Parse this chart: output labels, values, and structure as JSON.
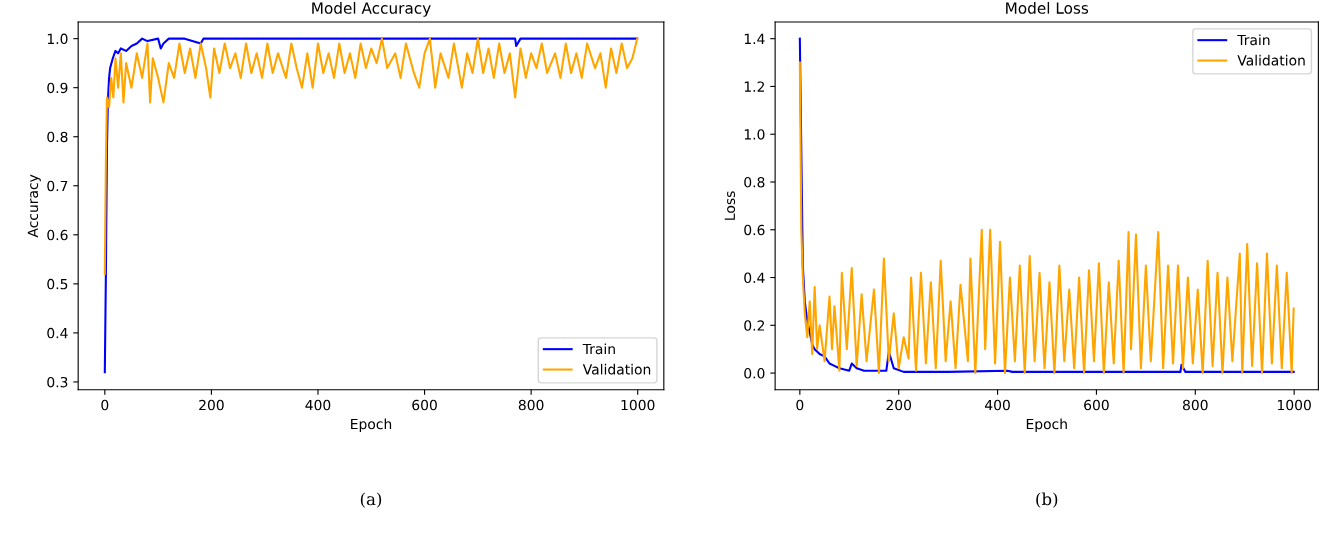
{
  "chart_data": [
    {
      "type": "line",
      "title": "Model Accuracy",
      "xlabel": "Epoch",
      "ylabel": "Accuracy",
      "xlim": [
        -50,
        1049
      ],
      "xticks": [
        0,
        200,
        400,
        600,
        800,
        1000
      ],
      "ylim": [
        0.284,
        1.034
      ],
      "yticks": [
        {
          "value": 0.3,
          "label": "0.3"
        },
        {
          "value": 0.4,
          "label": "0.4"
        },
        {
          "value": 0.5,
          "label": "0.5"
        },
        {
          "value": 0.6,
          "label": "0.6"
        },
        {
          "value": 0.7,
          "label": "0.7"
        },
        {
          "value": 0.8,
          "label": "0.8"
        },
        {
          "value": 0.9,
          "label": "0.9"
        },
        {
          "value": 1.0,
          "label": "1.0"
        }
      ],
      "legend": "lower right",
      "grid": false,
      "annotations": [
        "(a)"
      ],
      "series": [
        {
          "name": "Train",
          "color": "#0000ff",
          "x": [
            0,
            2,
            4,
            6,
            8,
            10,
            15,
            20,
            25,
            30,
            40,
            50,
            60,
            70,
            80,
            100,
            105,
            110,
            120,
            150,
            180,
            185,
            200,
            400,
            770,
            772,
            780,
            999
          ],
          "values": [
            0.32,
            0.52,
            0.78,
            0.88,
            0.92,
            0.94,
            0.96,
            0.975,
            0.97,
            0.98,
            0.975,
            0.985,
            0.99,
            1.0,
            0.995,
            1.0,
            0.98,
            0.99,
            1.0,
            1.0,
            0.99,
            1.0,
            1.0,
            1.0,
            1.0,
            0.985,
            1.0,
            1.0
          ]
        },
        {
          "name": "Validation",
          "color": "#ffa500",
          "x": [
            0,
            2,
            4,
            8,
            12,
            16,
            20,
            25,
            30,
            35,
            40,
            50,
            60,
            70,
            80,
            85,
            90,
            100,
            110,
            120,
            130,
            140,
            150,
            160,
            170,
            180,
            190,
            198,
            205,
            215,
            225,
            235,
            245,
            255,
            265,
            275,
            285,
            295,
            305,
            315,
            325,
            340,
            350,
            360,
            370,
            380,
            390,
            400,
            410,
            420,
            430,
            440,
            450,
            460,
            470,
            480,
            490,
            500,
            510,
            520,
            530,
            545,
            555,
            565,
            580,
            590,
            600,
            610,
            620,
            630,
            645,
            655,
            670,
            680,
            690,
            700,
            710,
            720,
            730,
            740,
            750,
            760,
            770,
            780,
            790,
            800,
            810,
            820,
            830,
            845,
            855,
            865,
            875,
            885,
            895,
            905,
            920,
            930,
            940,
            950,
            960,
            970,
            980,
            990,
            999
          ],
          "values": [
            0.52,
            0.75,
            0.88,
            0.86,
            0.92,
            0.88,
            0.96,
            0.9,
            0.97,
            0.87,
            0.95,
            0.9,
            0.97,
            0.92,
            0.99,
            0.87,
            0.96,
            0.92,
            0.87,
            0.95,
            0.92,
            0.99,
            0.93,
            0.98,
            0.92,
            0.99,
            0.94,
            0.88,
            0.98,
            0.93,
            0.99,
            0.94,
            0.97,
            0.92,
            0.99,
            0.93,
            0.97,
            0.92,
            0.99,
            0.93,
            0.97,
            0.92,
            0.99,
            0.94,
            0.9,
            0.97,
            0.9,
            0.99,
            0.93,
            0.97,
            0.92,
            0.99,
            0.93,
            0.97,
            0.92,
            0.99,
            0.94,
            0.98,
            0.95,
            1.0,
            0.94,
            0.97,
            0.92,
            0.99,
            0.93,
            0.9,
            0.97,
            1.0,
            0.9,
            0.97,
            0.92,
            0.99,
            0.9,
            0.97,
            0.93,
            1.0,
            0.93,
            0.98,
            0.92,
            0.99,
            0.93,
            0.97,
            0.88,
            0.98,
            0.92,
            0.97,
            0.94,
            0.99,
            0.93,
            0.97,
            0.92,
            0.99,
            0.93,
            0.97,
            0.92,
            0.99,
            0.94,
            0.97,
            0.9,
            0.98,
            0.93,
            0.99,
            0.94,
            0.96,
            1.0
          ]
        }
      ]
    },
    {
      "type": "line",
      "title": "Model Loss",
      "xlabel": "Epoch",
      "ylabel": "Loss",
      "xlim": [
        -50,
        1049
      ],
      "xticks": [
        0,
        200,
        400,
        600,
        800,
        1000
      ],
      "ylim": [
        -0.07,
        1.47
      ],
      "yticks": [
        {
          "value": 0.0,
          "label": "0.0"
        },
        {
          "value": 0.2,
          "label": "0.2"
        },
        {
          "value": 0.4,
          "label": "0.4"
        },
        {
          "value": 0.6,
          "label": "0.6"
        },
        {
          "value": 0.8,
          "label": "0.8"
        },
        {
          "value": 1.0,
          "label": "1.0"
        },
        {
          "value": 1.2,
          "label": "1.2"
        },
        {
          "value": 1.4,
          "label": "1.4"
        }
      ],
      "legend": "upper right",
      "grid": false,
      "annotations": [
        "(b)"
      ],
      "series": [
        {
          "name": "Train",
          "color": "#0000ff",
          "x": [
            0,
            6,
            10,
            15,
            20,
            25,
            30,
            40,
            50,
            60,
            70,
            80,
            90,
            100,
            105,
            115,
            130,
            150,
            175,
            180,
            190,
            210,
            300,
            420,
            430,
            770,
            772,
            780,
            999
          ],
          "values": [
            1.4,
            0.45,
            0.3,
            0.22,
            0.17,
            0.12,
            0.1,
            0.08,
            0.07,
            0.04,
            0.03,
            0.02,
            0.015,
            0.01,
            0.04,
            0.02,
            0.01,
            0.01,
            0.01,
            0.09,
            0.02,
            0.005,
            0.005,
            0.01,
            0.005,
            0.005,
            0.035,
            0.005,
            0.005
          ]
        },
        {
          "name": "Validation",
          "color": "#ffa500",
          "x": [
            0,
            3,
            6,
            10,
            15,
            20,
            25,
            30,
            35,
            40,
            50,
            60,
            65,
            70,
            80,
            85,
            95,
            105,
            115,
            125,
            135,
            150,
            160,
            170,
            180,
            190,
            200,
            210,
            220,
            225,
            235,
            245,
            255,
            265,
            275,
            285,
            295,
            305,
            315,
            325,
            340,
            345,
            355,
            368,
            375,
            385,
            395,
            405,
            415,
            425,
            435,
            445,
            455,
            465,
            475,
            485,
            495,
            505,
            515,
            525,
            535,
            545,
            555,
            565,
            575,
            585,
            595,
            605,
            615,
            625,
            635,
            645,
            655,
            665,
            670,
            680,
            690,
            700,
            710,
            725,
            735,
            745,
            755,
            765,
            775,
            785,
            795,
            805,
            815,
            825,
            835,
            845,
            855,
            865,
            875,
            890,
            895,
            905,
            915,
            925,
            935,
            945,
            955,
            965,
            975,
            985,
            995,
            999
          ],
          "values": [
            1.3,
            0.6,
            0.4,
            0.25,
            0.15,
            0.3,
            0.08,
            0.36,
            0.1,
            0.2,
            0.05,
            0.32,
            0.1,
            0.28,
            0.01,
            0.42,
            0.1,
            0.44,
            0.03,
            0.33,
            0.05,
            0.35,
            0.0,
            0.48,
            0.05,
            0.25,
            0.02,
            0.15,
            0.06,
            0.4,
            0.01,
            0.42,
            0.04,
            0.38,
            0.02,
            0.47,
            0.05,
            0.3,
            0.02,
            0.37,
            0.05,
            0.48,
            0.0,
            0.6,
            0.1,
            0.6,
            0.04,
            0.55,
            0.0,
            0.4,
            0.05,
            0.45,
            0.0,
            0.49,
            0.05,
            0.42,
            0.02,
            0.38,
            0.0,
            0.45,
            0.05,
            0.35,
            0.02,
            0.4,
            0.0,
            0.43,
            0.05,
            0.46,
            0.0,
            0.38,
            0.04,
            0.47,
            0.0,
            0.59,
            0.1,
            0.58,
            0.02,
            0.45,
            0.05,
            0.59,
            0.02,
            0.45,
            0.04,
            0.45,
            0.02,
            0.4,
            0.04,
            0.35,
            0.0,
            0.47,
            0.03,
            0.42,
            0.0,
            0.4,
            0.05,
            0.5,
            0.0,
            0.54,
            0.03,
            0.46,
            0.0,
            0.5,
            0.04,
            0.45,
            0.02,
            0.42,
            0.0,
            0.27
          ]
        }
      ]
    }
  ]
}
